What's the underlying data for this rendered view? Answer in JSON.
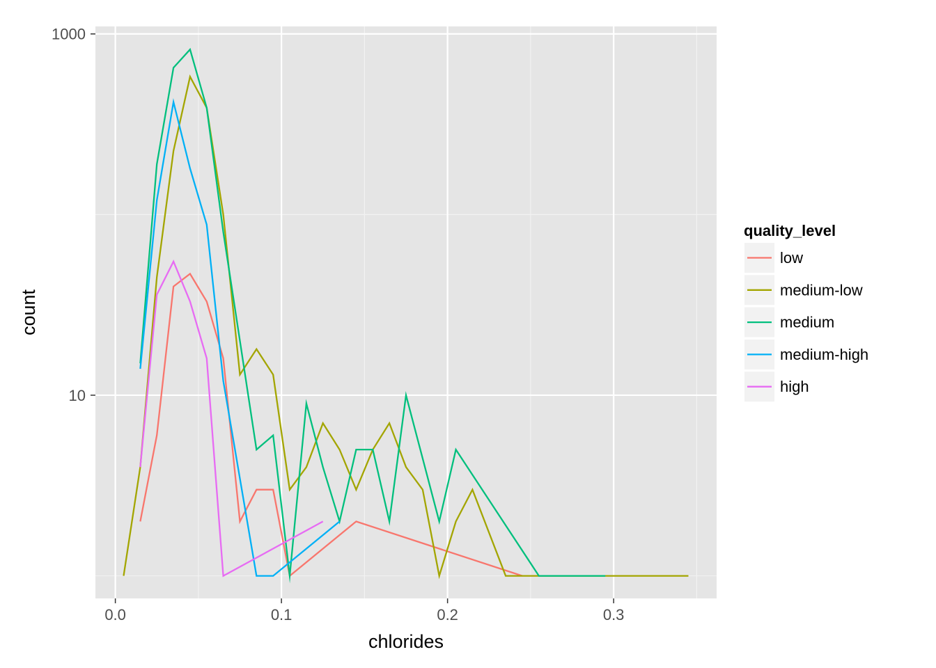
{
  "chart_data": {
    "type": "line",
    "xlabel": "chlorides",
    "ylabel": "count",
    "x_ticks": [
      "0.0",
      "0.1",
      "0.2",
      "0.3"
    ],
    "y_ticks": [
      "10",
      "1000"
    ],
    "y_scale": "log10",
    "xlim": [
      -0.012,
      0.362
    ],
    "ylim": [
      0.75,
      1100
    ],
    "grid": true,
    "legend": {
      "title": "quality_level",
      "position": "right"
    },
    "series": [
      {
        "name": "low",
        "color": "#F8766D",
        "x": [
          0.015,
          0.025,
          0.035,
          0.045,
          0.055,
          0.065,
          0.075,
          0.085,
          0.095,
          0.105,
          0.145,
          0.245
        ],
        "y": [
          2,
          6,
          40,
          47,
          33,
          16,
          2,
          3,
          3,
          1,
          2,
          1
        ]
      },
      {
        "name": "medium-low",
        "color": "#A3A500",
        "x": [
          0.005,
          0.015,
          0.025,
          0.035,
          0.045,
          0.055,
          0.065,
          0.075,
          0.085,
          0.095,
          0.105,
          0.115,
          0.125,
          0.135,
          0.145,
          0.155,
          0.165,
          0.175,
          0.185,
          0.195,
          0.205,
          0.215,
          0.235,
          0.245,
          0.345
        ],
        "y": [
          1,
          4,
          45,
          225,
          580,
          390,
          100,
          13,
          18,
          13,
          3,
          4,
          7,
          5,
          3,
          5,
          7,
          4,
          3,
          1,
          2,
          3,
          1,
          1,
          1
        ]
      },
      {
        "name": "medium",
        "color": "#00BF7D",
        "x": [
          0.015,
          0.025,
          0.035,
          0.045,
          0.055,
          0.065,
          0.075,
          0.085,
          0.095,
          0.105,
          0.115,
          0.125,
          0.135,
          0.145,
          0.155,
          0.165,
          0.175,
          0.195,
          0.205,
          0.255,
          0.295
        ],
        "y": [
          15,
          190,
          650,
          820,
          390,
          80,
          20,
          5,
          6,
          1,
          9,
          4,
          2,
          5,
          5,
          2,
          10,
          2,
          5,
          1,
          1
        ]
      },
      {
        "name": "medium-high",
        "color": "#00B0F6",
        "x": [
          0.015,
          0.025,
          0.035,
          0.045,
          0.055,
          0.065,
          0.085,
          0.095,
          0.135
        ],
        "y": [
          14,
          120,
          420,
          180,
          88,
          12,
          1,
          1,
          2
        ]
      },
      {
        "name": "high",
        "color": "#E76BF3",
        "x": [
          0.015,
          0.025,
          0.035,
          0.045,
          0.055,
          0.065,
          0.125
        ],
        "y": [
          4,
          36,
          55,
          33,
          16,
          1,
          2
        ]
      }
    ]
  }
}
